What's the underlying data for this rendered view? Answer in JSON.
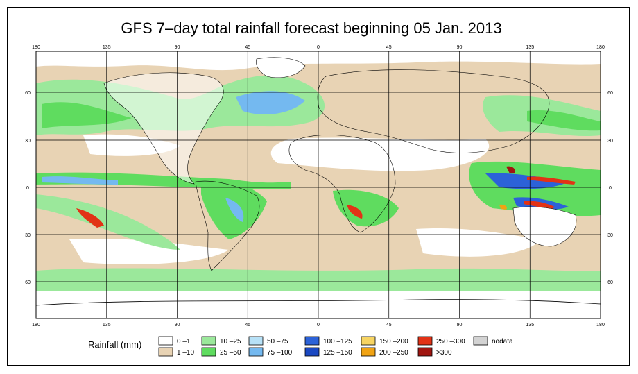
{
  "title": "GFS 7–day total rainfall forecast beginning 05 Jan. 2013",
  "map": {
    "lon_ticks": [
      "180",
      "135",
      "90",
      "45",
      "0",
      "45",
      "90",
      "135",
      "180"
    ],
    "lat_ticks_left": [
      "60",
      "30",
      "0",
      "30",
      "60"
    ],
    "lat_ticks_right": [
      "60",
      "30",
      "0",
      "30",
      "60"
    ],
    "colors": {
      "ocean_dry": "#e8d3b4",
      "land_dry": "#ffffff",
      "light": "#9be89b",
      "medium": "#5fdc5f",
      "heavy_blue": "#74b9f0",
      "very_heavy": "#2c62d8",
      "extreme_red": "#e23216",
      "extreme_dark": "#a01510",
      "orange": "#f1a313",
      "gridline": "#000000"
    }
  },
  "legend": {
    "title": "Rainfall (mm)",
    "items": [
      {
        "label": "0 –1",
        "color": "#ffffff"
      },
      {
        "label": "1 –10",
        "color": "#e8d3b4"
      },
      {
        "label": "10 –25",
        "color": "#9be89b"
      },
      {
        "label": "25 –50",
        "color": "#5fdc5f"
      },
      {
        "label": "50 –75",
        "color": "#b7e1f7"
      },
      {
        "label": "75 –100",
        "color": "#74b9f0"
      },
      {
        "label": "100 –125",
        "color": "#2c62d8"
      },
      {
        "label": "125 –150",
        "color": "#1a48c2"
      },
      {
        "label": "150 –200",
        "color": "#f7d462"
      },
      {
        "label": "200 –250",
        "color": "#f1a313"
      },
      {
        "label": "250 –300",
        "color": "#e23216"
      },
      {
        "label": ">300",
        "color": "#a01510"
      },
      {
        "label": "nodata",
        "color": "#d3d3d3"
      }
    ]
  }
}
